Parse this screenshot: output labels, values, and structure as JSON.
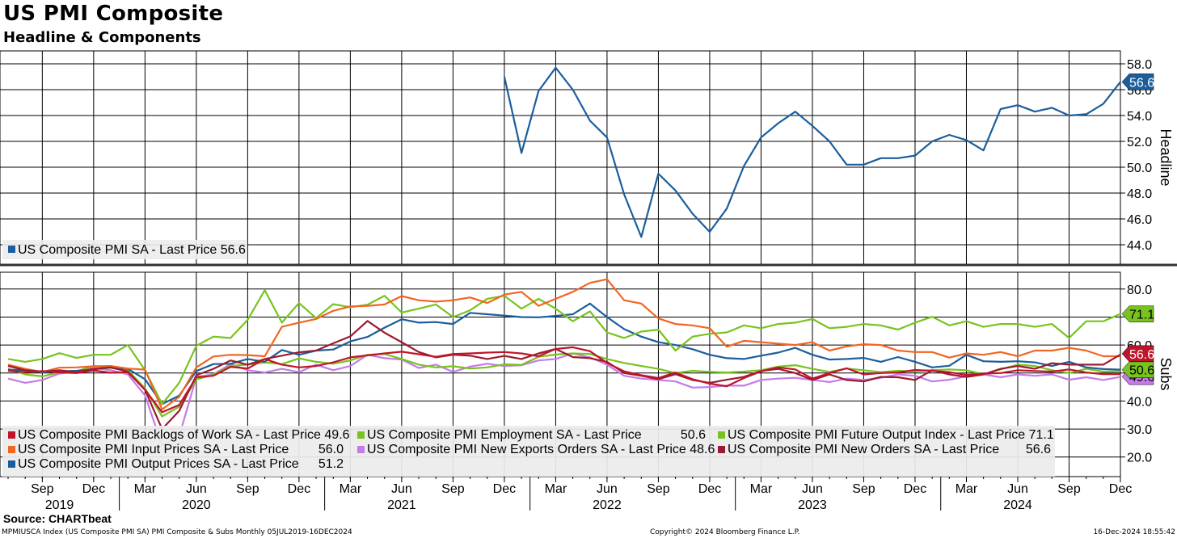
{
  "title": "US PMI Composite",
  "subtitle": "Headline & Components",
  "source": "Source: CHARTbeat",
  "footer": {
    "left": "MPMIUSCA Index (US Composite PMI SA) PMI Composite & Subs  Monthly 05JUL2019-16DEC2024",
    "center": "Copyright© 2024 Bloomberg Finance L.P.",
    "right": "16-Dec-2024 18:55:42"
  },
  "colors": {
    "headline": "#1b5e9c",
    "backlogs": "#c0142a",
    "input_prices": "#f26522",
    "output_prices": "#1b5e9c",
    "employment": "#78c31e",
    "new_exports": "#c57be8",
    "future_output": "#78c31e",
    "new_orders": "#9b1b30"
  },
  "chart_data": [
    {
      "type": "line",
      "panel": "top",
      "axis_label": "Headline",
      "ylim": [
        42.5,
        59.0
      ],
      "yticks": [
        "44.0",
        "46.0",
        "48.0",
        "50.0",
        "52.0",
        "54.0",
        "56.0",
        "58.0"
      ],
      "x_start": "2019-07",
      "x_months": 66,
      "x_ticks": [
        {
          "label": "Sep",
          "month": 2
        },
        {
          "label": "Dec",
          "month": 5
        },
        {
          "label": "Mar",
          "month": 8
        },
        {
          "label": "Jun",
          "month": 11
        },
        {
          "label": "Sep",
          "month": 14
        },
        {
          "label": "Dec",
          "month": 17
        },
        {
          "label": "Mar",
          "month": 20
        },
        {
          "label": "Jun",
          "month": 23
        },
        {
          "label": "Sep",
          "month": 26
        },
        {
          "label": "Dec",
          "month": 29
        },
        {
          "label": "Mar",
          "month": 32
        },
        {
          "label": "Jun",
          "month": 35
        },
        {
          "label": "Sep",
          "month": 38
        },
        {
          "label": "Dec",
          "month": 41
        },
        {
          "label": "Mar",
          "month": 44
        },
        {
          "label": "Jun",
          "month": 47
        },
        {
          "label": "Sep",
          "month": 50
        },
        {
          "label": "Dec",
          "month": 53
        },
        {
          "label": "Mar",
          "month": 56
        },
        {
          "label": "Jun",
          "month": 59
        },
        {
          "label": "Sep",
          "month": 62
        },
        {
          "label": "Dec",
          "month": 65
        }
      ],
      "year_labels": [
        {
          "label": "2019",
          "month": 3
        },
        {
          "label": "2020",
          "month": 11
        },
        {
          "label": "2021",
          "month": 23
        },
        {
          "label": "2022",
          "month": 35
        },
        {
          "label": "2023",
          "month": 47
        },
        {
          "label": "2024",
          "month": 59
        }
      ],
      "series": [
        {
          "name": "US Composite PMI SA - Last Price 56.6",
          "color_key": "headline",
          "last_value": "56.6",
          "start_month": 29,
          "values": [
            57.0,
            51.1,
            55.9,
            57.7,
            56.0,
            53.6,
            52.3,
            47.9,
            44.6,
            49.5,
            48.2,
            46.4,
            45.0,
            46.8,
            50.1,
            52.3,
            53.4,
            54.3,
            53.2,
            52.0,
            50.2,
            50.2,
            50.7,
            50.7,
            50.9,
            52.0,
            52.5,
            52.1,
            51.3,
            54.5,
            54.8,
            54.3,
            54.6,
            54.0,
            54.1,
            54.9,
            56.6
          ]
        }
      ]
    },
    {
      "type": "line",
      "panel": "bottom",
      "axis_label": "Subs",
      "ylim": [
        13.0,
        86.0
      ],
      "yticks": [
        "20.0",
        "30.0",
        "40.0",
        "50.0",
        "60.0",
        "70.0",
        "80.0"
      ],
      "series": [
        {
          "name": "US Composite PMI Backlogs of Work SA - Last Price 49.6",
          "color_key": "backlogs",
          "last_value": "49.6",
          "values": [
            50.8,
            50.3,
            50.7,
            50.2,
            50.0,
            50.9,
            50.1,
            50.3,
            44.0,
            36.0,
            38.6,
            48.5,
            49.0,
            52.2,
            51.6,
            55.0,
            53.0,
            52.0,
            52.5,
            53.8,
            55.6,
            56.3,
            57.0,
            57.6,
            56.7,
            55.8,
            56.8,
            57.0,
            57.3,
            57.5,
            57.0,
            56.0,
            58.6,
            59.2,
            57.8,
            53.6,
            50.6,
            49.2,
            48.2,
            50.2,
            47.8,
            46.2,
            45.3,
            48.2,
            50.6,
            52.0,
            51.3,
            48.0,
            50.0,
            51.7,
            49.5,
            50.0,
            50.2,
            51.1,
            50.8,
            50.3,
            49.3,
            49.8,
            50.0,
            51.0,
            50.7,
            50.5,
            51.3,
            50.2,
            49.6,
            49.6
          ]
        },
        {
          "name": "US Composite PMI Input Prices SA - Last Price",
          "color_key": "input_prices",
          "last_value": "56.0",
          "values": [
            53.0,
            51.5,
            50.4,
            51.9,
            52.0,
            52.4,
            52.5,
            51.6,
            51.2,
            37.0,
            41.5,
            52.0,
            55.9,
            56.5,
            56.4,
            56.0,
            66.5,
            68.0,
            69.3,
            72.2,
            73.8,
            74.0,
            74.5,
            77.5,
            76.0,
            75.5,
            76.0,
            77.0,
            75.0,
            78.0,
            79.0,
            74.0,
            76.5,
            79.0,
            82.2,
            83.5,
            76.0,
            74.8,
            69.5,
            67.5,
            67.0,
            66.0,
            59.4,
            61.5,
            61.0,
            60.5,
            60.0,
            61.0,
            58.0,
            59.5,
            60.3,
            60.0,
            58.0,
            57.5,
            57.5,
            55.5,
            57.0,
            56.5,
            57.5,
            56.0,
            58.0,
            58.0,
            59.0,
            58.0,
            56.0,
            56.0
          ]
        },
        {
          "name": "US Composite PMI Output Prices SA - Last Price",
          "color_key": "output_prices",
          "last_value": "51.2",
          "values": [
            51.2,
            51.0,
            50.2,
            50.6,
            50.8,
            51.3,
            52.0,
            51.5,
            47.8,
            38.9,
            41.9,
            50.7,
            53.2,
            53.3,
            55.0,
            54.0,
            58.2,
            56.5,
            58.0,
            58.4,
            61.3,
            62.9,
            66.2,
            69.2,
            68.0,
            68.2,
            67.5,
            71.5,
            71.0,
            70.5,
            70.0,
            69.9,
            70.4,
            71.0,
            74.8,
            70.0,
            65.7,
            63.0,
            61.0,
            60.0,
            58.5,
            56.5,
            55.3,
            55.0,
            56.2,
            57.3,
            59.0,
            56.5,
            54.8,
            55.0,
            55.4,
            54.0,
            55.7,
            54.0,
            52.0,
            52.6,
            56.5,
            54.2,
            54.0,
            54.2,
            53.8,
            52.5,
            54.0,
            52.0,
            51.4,
            51.2
          ]
        },
        {
          "name": "US Composite PMI Employment SA - Last Price",
          "color_key": "employment",
          "last_value": "50.6",
          "values": [
            51.5,
            49.5,
            48.8,
            50.2,
            50.6,
            52.5,
            51.8,
            51.0,
            44.5,
            34.5,
            38.0,
            47.7,
            49.4,
            52.6,
            53.0,
            53.8,
            53.2,
            55.2,
            54.0,
            53.3,
            54.5,
            56.5,
            56.8,
            55.0,
            53.0,
            52.0,
            52.4,
            51.6,
            52.0,
            53.1,
            52.9,
            55.8,
            56.6,
            57.0,
            56.8,
            55.0,
            53.6,
            52.5,
            51.5,
            50.0,
            50.8,
            50.4,
            50.2,
            50.5,
            51.0,
            52.3,
            52.8,
            51.5,
            50.4,
            51.6,
            51.0,
            50.3,
            50.8,
            50.6,
            51.0,
            51.3,
            51.0,
            49.5,
            51.3,
            53.0,
            52.5,
            51.0,
            50.0,
            51.5,
            50.5,
            50.6
          ]
        },
        {
          "name": "US Composite PMI New Exports Orders SA - Last Price 48.6",
          "color_key": "new_exports",
          "last_value": "48.6",
          "values": [
            48.0,
            46.5,
            47.5,
            49.8,
            50.6,
            51.8,
            51.0,
            49.5,
            42.0,
            24.2,
            27.4,
            48.6,
            49.5,
            53.2,
            51.0,
            50.2,
            51.5,
            50.3,
            53.0,
            51.0,
            52.5,
            56.5,
            55.3,
            54.8,
            51.8,
            53.0,
            50.4,
            52.3,
            53.3,
            52.5,
            52.8,
            54.5,
            55.0,
            57.0,
            55.6,
            53.0,
            49.0,
            48.0,
            47.5,
            47.0,
            44.8,
            45.0,
            45.5,
            45.5,
            47.5,
            48.0,
            48.3,
            47.5,
            46.8,
            48.0,
            47.5,
            48.3,
            49.5,
            49.0,
            47.0,
            47.6,
            48.8,
            49.5,
            48.5,
            49.5,
            49.0,
            49.5,
            47.6,
            48.5,
            47.5,
            48.6
          ]
        },
        {
          "name": "US Composite PMI Future Output Index - Last Price 71.1",
          "color_key": "future_output",
          "last_value": "71.1",
          "values": [
            55.0,
            54.0,
            55.0,
            57.1,
            55.4,
            56.5,
            56.5,
            60.0,
            51.0,
            38.9,
            46.5,
            59.7,
            63.0,
            62.5,
            69.0,
            79.6,
            68.0,
            75.0,
            69.6,
            74.6,
            73.5,
            74.4,
            77.6,
            71.6,
            73.0,
            74.5,
            70.0,
            72.4,
            76.5,
            77.6,
            73.0,
            76.5,
            73.0,
            68.5,
            72.0,
            64.5,
            62.5,
            64.8,
            65.5,
            58.0,
            63.0,
            64.0,
            64.5,
            67.0,
            66.0,
            67.5,
            68.0,
            69.3,
            66.0,
            66.5,
            67.5,
            67.0,
            65.5,
            68.0,
            70.1,
            67.0,
            68.5,
            66.5,
            67.5,
            67.5,
            66.5,
            67.5,
            62.5,
            68.5,
            68.5,
            71.1
          ]
        },
        {
          "name": "US Composite PMI New Orders SA - Last Price",
          "color_key": "new_orders",
          "last_value": "56.6",
          "values": [
            52.5,
            51.0,
            50.5,
            51.0,
            50.3,
            51.5,
            52.0,
            50.5,
            44.0,
            30.0,
            36.5,
            49.2,
            51.5,
            54.5,
            53.0,
            55.0,
            56.2,
            57.4,
            58.0,
            60.6,
            63.1,
            68.6,
            64.4,
            61.0,
            57.5,
            55.6,
            56.5,
            56.2,
            55.0,
            56.1,
            55.0,
            57.0,
            58.6,
            55.7,
            55.3,
            54.0,
            50.0,
            49.0,
            47.8,
            49.6,
            47.5,
            46.5,
            47.6,
            48.6,
            50.7,
            51.5,
            50.0,
            47.5,
            49.5,
            47.5,
            47.0,
            48.6,
            48.5,
            47.5,
            51.0,
            49.5,
            48.6,
            49.5,
            51.5,
            52.5,
            51.5,
            53.5,
            53.0,
            53.0,
            53.0,
            56.6
          ]
        }
      ]
    }
  ]
}
